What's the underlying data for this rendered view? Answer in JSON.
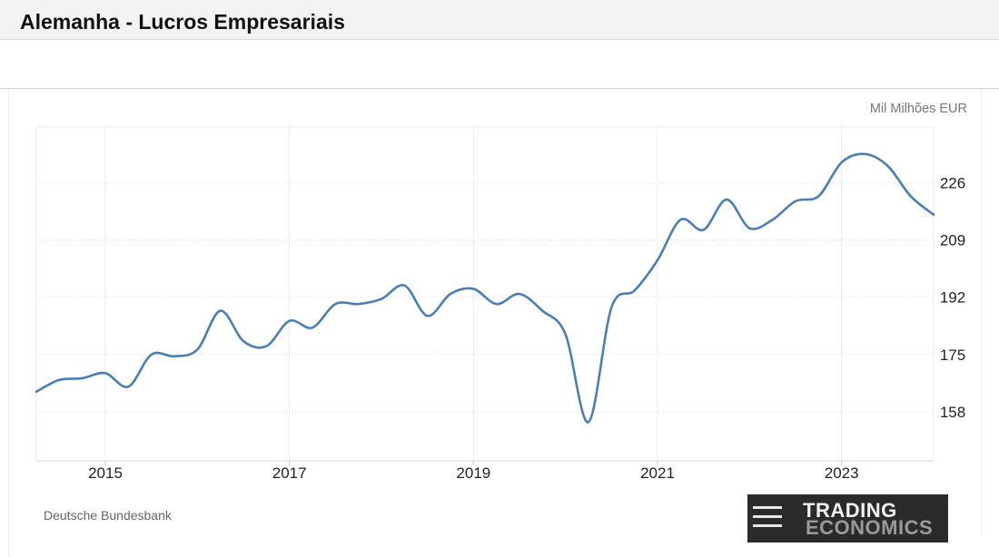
{
  "header": {
    "title": "Alemanha - Lucros Empresariais"
  },
  "footer": {
    "source": "Deutsche Bundesbank"
  },
  "logo": {
    "line1": "TRADING",
    "line2": "ECONOMICS"
  },
  "chart_data": {
    "type": "line",
    "title": "Alemanha - Lucros Empresariais",
    "unit": "Mil Milhões EUR",
    "xlabel": "",
    "ylabel": "",
    "grid": true,
    "y_axis_side": "right",
    "color": "#4b7fb3",
    "xlim": [
      2014.25,
      2024.0
    ],
    "ylim": [
      143.5,
      242.5
    ],
    "x_ticks": [
      2015,
      2017,
      2019,
      2021,
      2023
    ],
    "y_ticks": [
      158,
      175,
      192,
      209,
      226
    ],
    "series": [
      {
        "x": [
          2014.25,
          2014.5,
          2014.75,
          2015.0,
          2015.25,
          2015.5,
          2015.75,
          2016.0,
          2016.25,
          2016.5,
          2016.75,
          2017.0,
          2017.25,
          2017.5,
          2017.75,
          2018.0,
          2018.25,
          2018.5,
          2018.75,
          2019.0,
          2019.25,
          2019.5,
          2019.75,
          2020.0,
          2020.25,
          2020.5,
          2020.75,
          2021.0,
          2021.25,
          2021.5,
          2021.75,
          2022.0,
          2022.25,
          2022.5,
          2022.75,
          2023.0,
          2023.25,
          2023.5,
          2023.75,
          2024.0
        ],
        "values": [
          164,
          167.5,
          168,
          169.5,
          165.5,
          175,
          174.5,
          176.5,
          188,
          179,
          177.5,
          185,
          183,
          190,
          190,
          191.5,
          195.5,
          186.5,
          193,
          194.5,
          190,
          193,
          188,
          181,
          155,
          189,
          194,
          203,
          215,
          212,
          221,
          212.5,
          215,
          220.5,
          222,
          232,
          234.5,
          231,
          222,
          216.5
        ]
      }
    ]
  }
}
